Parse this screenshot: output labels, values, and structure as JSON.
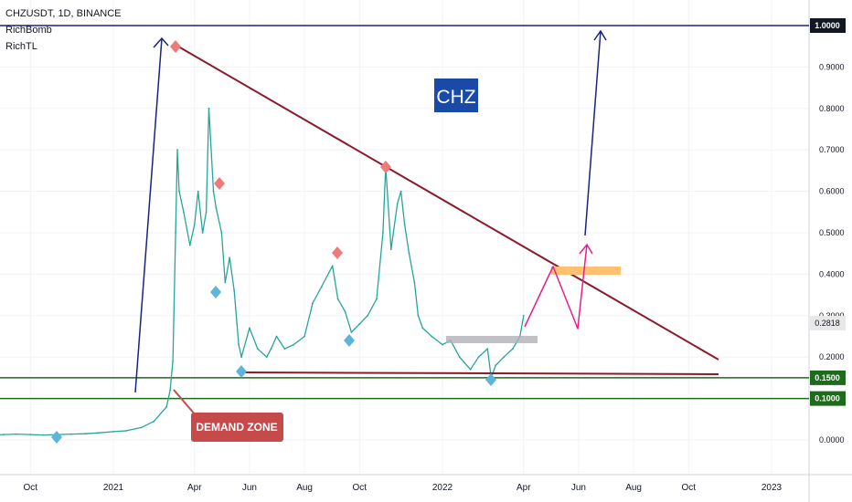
{
  "header": {
    "symbol_line": "CHZUSDT, 1D, BINANCE",
    "indicators": [
      "RichBomb",
      "RichTL"
    ]
  },
  "chart_data": {
    "type": "line",
    "title": "CHZ",
    "x_ticks": [
      "Oct",
      "2021",
      "Apr",
      "Jun",
      "Aug",
      "Oct",
      "2022",
      "Apr",
      "Jun",
      "Aug",
      "Oct",
      "2023"
    ],
    "x_tick_dates": [
      "2020-10-01",
      "2021-01-01",
      "2021-04-01",
      "2021-06-01",
      "2021-08-01",
      "2021-10-01",
      "2022-01-01",
      "2022-04-01",
      "2022-06-01",
      "2022-08-01",
      "2022-10-01",
      "2023-01-01"
    ],
    "y_ticks": [
      "1.0000",
      "0.9000",
      "0.8000",
      "0.7000",
      "0.6000",
      "0.5000",
      "0.4000",
      "0.3000",
      "0.2000",
      "0.1500",
      "0.1000",
      "0.0000"
    ],
    "ylim": [
      -0.09,
      1.03
    ],
    "series": [
      {
        "x": [
          "2020-08-20",
          "2020-09-01",
          "2020-09-15",
          "2020-10-01",
          "2020-10-15",
          "2020-11-01",
          "2020-11-15",
          "2020-12-01",
          "2020-12-15",
          "2021-01-01",
          "2021-01-15",
          "2021-02-01",
          "2021-02-15",
          "2021-03-01",
          "2021-03-05",
          "2021-03-08",
          "2021-03-11",
          "2021-03-13",
          "2021-03-15",
          "2021-03-20",
          "2021-03-27",
          "2021-04-01",
          "2021-04-05",
          "2021-04-10",
          "2021-04-14",
          "2021-04-17",
          "2021-04-22",
          "2021-04-25",
          "2021-05-01",
          "2021-05-05",
          "2021-05-10",
          "2021-05-15",
          "2021-05-20",
          "2021-05-23",
          "2021-06-01",
          "2021-06-10",
          "2021-06-20",
          "2021-06-25",
          "2021-07-01",
          "2021-07-10",
          "2021-07-20",
          "2021-08-01",
          "2021-08-10",
          "2021-08-20",
          "2021-09-01",
          "2021-09-07",
          "2021-09-15",
          "2021-09-22",
          "2021-10-01",
          "2021-10-10",
          "2021-10-20",
          "2021-10-27",
          "2021-10-30",
          "2021-11-05",
          "2021-11-12",
          "2021-11-16",
          "2021-11-20",
          "2021-11-25",
          "2021-12-01",
          "2021-12-05",
          "2021-12-10",
          "2021-12-20",
          "2022-01-01",
          "2022-01-10",
          "2022-01-20",
          "2022-02-01",
          "2022-02-10",
          "2022-02-20",
          "2022-02-24",
          "2022-03-01",
          "2022-03-10",
          "2022-03-20",
          "2022-03-28",
          "2022-04-01"
        ],
        "values": [
          0.012,
          0.013,
          0.014,
          0.013,
          0.012,
          0.013,
          0.014,
          0.015,
          0.017,
          0.02,
          0.022,
          0.03,
          0.045,
          0.08,
          0.12,
          0.19,
          0.5,
          0.7,
          0.6,
          0.55,
          0.47,
          0.52,
          0.6,
          0.5,
          0.55,
          0.8,
          0.6,
          0.56,
          0.5,
          0.38,
          0.44,
          0.36,
          0.23,
          0.2,
          0.27,
          0.22,
          0.2,
          0.22,
          0.25,
          0.22,
          0.23,
          0.25,
          0.33,
          0.37,
          0.42,
          0.34,
          0.31,
          0.26,
          0.28,
          0.3,
          0.34,
          0.5,
          0.66,
          0.46,
          0.57,
          0.6,
          0.52,
          0.45,
          0.38,
          0.3,
          0.27,
          0.25,
          0.23,
          0.24,
          0.2,
          0.17,
          0.2,
          0.22,
          0.15,
          0.18,
          0.2,
          0.22,
          0.25,
          0.3
        ]
      }
    ],
    "annotations": {
      "price_label": "0.2818",
      "demand_zone_label": "DEMAND ZONE",
      "logo_text": "CHZ"
    },
    "colors": {
      "line": "#26a69a",
      "trendline": "#8b1a2b",
      "demand_zone": "#1e6b1e",
      "blue_arrow": "#1a237e",
      "magenta_path": "#e91e8c",
      "price_label_bg": "#e8e8e8",
      "level_bg_dark": "#131722",
      "level_bg_green": "#1e6b1e",
      "target_box": "#ffc06f",
      "grey_box": "#b0b0b8",
      "diamond_red": "#ef7a7a",
      "diamond_blue": "#5eb5d9",
      "demand_label_bg": "#c74a4a",
      "logo_bg": "#1a4aa8"
    },
    "level_labels": [
      {
        "value": 1.0,
        "text": "1.0000",
        "style": "dark"
      },
      {
        "value": 0.15,
        "text": "0.1500",
        "style": "green"
      },
      {
        "value": 0.1,
        "text": "0.1000",
        "style": "green"
      }
    ]
  }
}
